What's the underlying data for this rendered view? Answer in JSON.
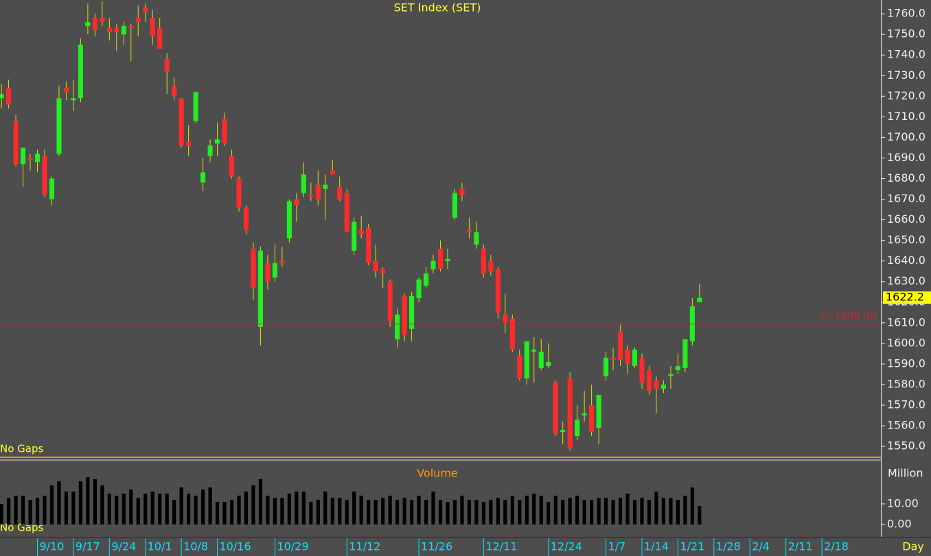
{
  "chart_data": [
    {
      "type": "candlestick",
      "title": "SET Index (SET)",
      "note": "No Gaps",
      "x_unit": "Day",
      "up_color": "#22ee22",
      "down_color": "#ff2b2b",
      "wick_color": "#e0e000",
      "open": [
        1719,
        1724,
        1708,
        1687,
        1690,
        1688,
        1691,
        1670,
        1692,
        1724,
        1718,
        1719,
        1754,
        1758,
        1758,
        1753,
        1753,
        1750,
        1754,
        1758,
        1763,
        1758,
        1753,
        1738,
        1725,
        1719,
        1698,
        1708,
        1678,
        1691,
        1697,
        1709,
        1691,
        1680,
        1666,
        1646,
        1608,
        1639,
        1632,
        1640,
        1651,
        1670,
        1673,
        1672,
        1677,
        1675,
        1684,
        1676,
        1673,
        1645,
        1655,
        1656,
        1640,
        1636,
        1630,
        1602,
        1623,
        1607,
        1622,
        1628,
        1636,
        1646,
        1640,
        1661,
        1675,
        1655,
        1648,
        1646,
        1640,
        1636,
        1614,
        1612,
        1594,
        1583,
        1596,
        1588,
        1589,
        1581,
        1557,
        1583,
        1555,
        1565,
        1570,
        1559,
        1584,
        1593,
        1606,
        1597,
        1589,
        1593,
        1587,
        1582,
        1578,
        1584,
        1587,
        1588,
        1601,
        1620
      ],
      "high": [
        1726,
        1728,
        1711,
        1695,
        1692,
        1694,
        1694,
        1681,
        1725,
        1727,
        1728,
        1748,
        1765,
        1760,
        1766,
        1758,
        1755,
        1756,
        1755,
        1764,
        1765,
        1762,
        1758,
        1741,
        1729,
        1719,
        1706,
        1722,
        1690,
        1699,
        1707,
        1712,
        1694,
        1681,
        1667,
        1649,
        1647,
        1643,
        1648,
        1647,
        1670,
        1673,
        1688,
        1678,
        1684,
        1682,
        1689,
        1681,
        1675,
        1661,
        1662,
        1658,
        1648,
        1637,
        1631,
        1617,
        1624,
        1625,
        1632,
        1637,
        1643,
        1650,
        1646,
        1675,
        1678,
        1661,
        1659,
        1648,
        1643,
        1637,
        1624,
        1614,
        1597,
        1601,
        1603,
        1602,
        1600,
        1582,
        1562,
        1586,
        1570,
        1577,
        1580,
        1575,
        1596,
        1598,
        1609,
        1599,
        1598,
        1595,
        1589,
        1584,
        1582,
        1589,
        1595,
        1602,
        1622,
        1629
      ],
      "low": [
        1714,
        1714,
        1686,
        1676,
        1684,
        1683,
        1671,
        1667,
        1691,
        1718,
        1713,
        1717,
        1750,
        1749,
        1754,
        1747,
        1742,
        1745,
        1737,
        1749,
        1756,
        1745,
        1743,
        1721,
        1718,
        1695,
        1691,
        1707,
        1674,
        1688,
        1691,
        1696,
        1680,
        1664,
        1653,
        1621,
        1599,
        1626,
        1630,
        1637,
        1649,
        1659,
        1671,
        1669,
        1667,
        1660,
        1682,
        1669,
        1654,
        1643,
        1651,
        1638,
        1632,
        1627,
        1608,
        1598,
        1601,
        1601,
        1620,
        1627,
        1634,
        1635,
        1636,
        1660,
        1669,
        1651,
        1646,
        1632,
        1633,
        1612,
        1605,
        1596,
        1582,
        1580,
        1581,
        1587,
        1588,
        1555,
        1551,
        1548,
        1553,
        1562,
        1555,
        1551,
        1582,
        1587,
        1589,
        1585,
        1588,
        1578,
        1575,
        1566,
        1576,
        1578,
        1585,
        1586,
        1599,
        1620
      ],
      "close": [
        1721,
        1716,
        1687,
        1695,
        1689,
        1692,
        1672,
        1680,
        1719,
        1722,
        1719,
        1745,
        1756,
        1752,
        1756,
        1751,
        1751,
        1754,
        1753,
        1756,
        1761,
        1749,
        1743,
        1732,
        1720,
        1696,
        1696,
        1722,
        1683,
        1696,
        1699,
        1697,
        1681,
        1666,
        1655,
        1627,
        1645,
        1630,
        1639,
        1639,
        1669,
        1667,
        1682,
        1671,
        1670,
        1677,
        1682,
        1670,
        1654,
        1659,
        1653,
        1639,
        1635,
        1634,
        1611,
        1614,
        1604,
        1623,
        1631,
        1634,
        1640,
        1636,
        1641,
        1673,
        1672,
        1654,
        1654,
        1634,
        1635,
        1615,
        1610,
        1597,
        1583,
        1601,
        1597,
        1596,
        1591,
        1556,
        1558,
        1549,
        1563,
        1566,
        1557,
        1575,
        1593,
        1592,
        1592,
        1590,
        1597,
        1581,
        1577,
        1578,
        1580,
        1585,
        1589,
        1602,
        1618,
        1622.2
      ],
      "ylim": [
        1544.7,
        1766.7
      ],
      "yticks": [
        {
          "value": 1550,
          "label": "1550.0"
        },
        {
          "value": 1560,
          "label": "1560.0"
        },
        {
          "value": 1570,
          "label": "1570.0"
        },
        {
          "value": 1580,
          "label": "1580.0"
        },
        {
          "value": 1590,
          "label": "1590.0"
        },
        {
          "value": 1600,
          "label": "1600.0"
        },
        {
          "value": 1610,
          "label": "1610.0"
        },
        {
          "value": 1620,
          "label": "1620.0"
        },
        {
          "value": 1630,
          "label": "1630.0"
        },
        {
          "value": 1640,
          "label": "1640.0"
        },
        {
          "value": 1650,
          "label": "1650.0"
        },
        {
          "value": 1660,
          "label": "1660.0"
        },
        {
          "value": 1670,
          "label": "1670.0"
        },
        {
          "value": 1680,
          "label": "1680.0"
        },
        {
          "value": 1690,
          "label": "1690.0"
        },
        {
          "value": 1700,
          "label": "1700.0"
        },
        {
          "value": 1710,
          "label": "1710.0"
        },
        {
          "value": 1720,
          "label": "1720.0"
        },
        {
          "value": 1730,
          "label": "1730.0"
        },
        {
          "value": 1740,
          "label": "1740.0"
        },
        {
          "value": 1750,
          "label": "1750.0"
        },
        {
          "value": 1760,
          "label": "1760.0"
        }
      ],
      "xlim": [
        -0.2,
        122.2
      ],
      "xticks": [
        {
          "value": 5,
          "label": "9/10"
        },
        {
          "value": 10,
          "label": "9/17"
        },
        {
          "value": 15,
          "label": "9/24"
        },
        {
          "value": 20,
          "label": "10/1"
        },
        {
          "value": 25,
          "label": "10/8"
        },
        {
          "value": 30,
          "label": "10/16"
        },
        {
          "value": 38,
          "label": "10/29"
        },
        {
          "value": 48,
          "label": "11/12"
        },
        {
          "value": 58,
          "label": "11/26"
        },
        {
          "value": 67,
          "label": "12/11"
        },
        {
          "value": 76,
          "label": "12/24"
        },
        {
          "value": 84,
          "label": "1/7"
        },
        {
          "value": 89,
          "label": "1/14"
        },
        {
          "value": 94,
          "label": "1/21"
        },
        {
          "value": 99,
          "label": "1/28"
        },
        {
          "value": 104,
          "label": "2/4"
        },
        {
          "value": 109,
          "label": "2/11"
        },
        {
          "value": 114,
          "label": "2/18"
        }
      ],
      "reference_line": {
        "value": 1609.39,
        "label": "1=1609.39",
        "color": "#cc2a2a"
      },
      "last_price": {
        "value": 1622.2,
        "label": "1622.2"
      }
    },
    {
      "type": "bar",
      "title": "Volume",
      "note": "No Gaps",
      "y_label": "Million",
      "color": "#000000",
      "values": [
        10,
        13,
        14,
        14,
        12,
        13,
        14,
        19,
        21,
        16,
        16,
        21,
        23,
        22,
        19,
        15,
        14,
        15,
        17,
        13,
        15,
        16,
        15,
        15,
        12,
        18,
        15,
        14,
        17,
        18,
        11,
        11,
        12,
        14,
        16,
        19,
        22,
        14,
        13,
        13,
        15,
        16,
        16,
        11,
        12,
        16,
        13,
        13,
        12,
        16,
        14,
        12,
        12,
        13,
        14,
        12,
        13,
        12,
        14,
        12,
        16,
        12,
        11,
        12,
        14,
        12,
        12,
        11,
        12,
        13,
        12,
        14,
        12,
        14,
        15,
        14,
        11,
        14,
        12,
        13,
        14,
        12,
        12,
        13,
        13,
        12,
        13,
        15,
        12,
        13,
        12,
        16,
        13,
        13,
        12,
        14,
        18,
        9
      ],
      "ylim": [
        -6,
        29.67
      ],
      "yticks": [
        {
          "value": 0,
          "label": "0.00"
        },
        {
          "value": 10,
          "label": "10.00"
        }
      ],
      "xlim": [
        -0.2,
        122.2
      ]
    }
  ]
}
